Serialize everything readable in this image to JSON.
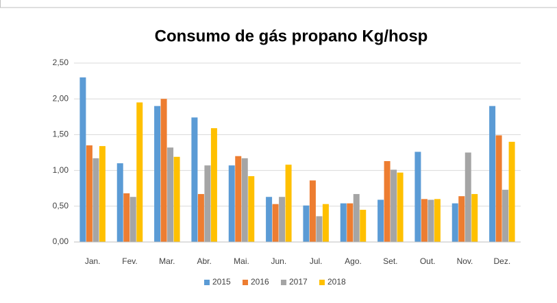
{
  "chart_data": {
    "type": "bar",
    "title": "Consumo de gás propano Kg/hosp",
    "categories": [
      "Jan.",
      "Fev.",
      "Mar.",
      "Abr.",
      "Mai.",
      "Jun.",
      "Jul.",
      "Ago.",
      "Set.",
      "Out.",
      "Nov.",
      "Dez."
    ],
    "series": [
      {
        "name": "2015",
        "color": "#5b9bd5",
        "values": [
          2.3,
          1.1,
          1.9,
          1.74,
          1.07,
          0.63,
          0.51,
          0.54,
          0.59,
          1.26,
          0.54,
          1.9
        ]
      },
      {
        "name": "2016",
        "color": "#ed7d31",
        "values": [
          1.35,
          0.68,
          2.0,
          0.67,
          1.2,
          0.53,
          0.86,
          0.54,
          1.13,
          0.6,
          0.64,
          1.49
        ]
      },
      {
        "name": "2017",
        "color": "#a5a5a5",
        "values": [
          1.17,
          0.63,
          1.32,
          1.07,
          1.17,
          0.63,
          0.36,
          0.67,
          1.01,
          0.59,
          1.25,
          0.73
        ]
      },
      {
        "name": "2018",
        "color": "#ffc000",
        "values": [
          1.34,
          1.95,
          1.19,
          1.59,
          0.92,
          1.08,
          0.53,
          0.45,
          0.97,
          0.6,
          0.67,
          1.4
        ]
      }
    ],
    "ylim": [
      0,
      2.5
    ],
    "yticks": [
      {
        "value": 0,
        "label": "0,00"
      },
      {
        "value": 0.5,
        "label": "0,50"
      },
      {
        "value": 1,
        "label": "1,00"
      },
      {
        "value": 1.5,
        "label": "1,50"
      },
      {
        "value": 2,
        "label": "2,00"
      },
      {
        "value": 2.5,
        "label": "2,50"
      }
    ],
    "grid": true,
    "legend": "bottom"
  }
}
